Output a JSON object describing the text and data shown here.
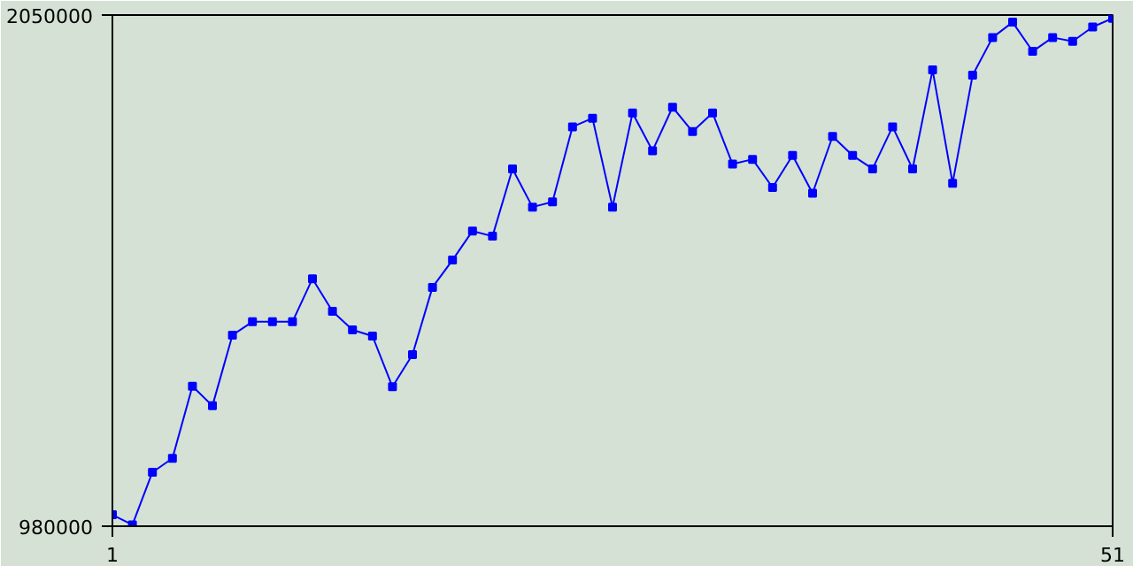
{
  "chart_data": {
    "type": "line",
    "x": [
      1,
      2,
      3,
      4,
      5,
      6,
      7,
      8,
      9,
      10,
      11,
      12,
      13,
      14,
      15,
      16,
      17,
      18,
      19,
      20,
      21,
      22,
      23,
      24,
      25,
      26,
      27,
      28,
      29,
      30,
      31,
      32,
      33,
      34,
      35,
      36,
      37,
      38,
      39,
      40,
      41,
      42,
      43,
      44,
      45,
      46,
      47,
      48,
      49,
      50,
      51
    ],
    "series": [
      {
        "color": "#0000ff",
        "values": [
          1004000,
          983000,
          1093000,
          1122000,
          1273000,
          1232000,
          1380000,
          1408000,
          1408000,
          1408000,
          1498000,
          1430000,
          1391000,
          1378000,
          1272000,
          1339000,
          1480000,
          1537000,
          1598000,
          1587000,
          1728000,
          1648000,
          1659000,
          1816000,
          1834000,
          1648000,
          1845000,
          1766000,
          1857000,
          1806000,
          1845000,
          1738000,
          1748000,
          1689000,
          1756000,
          1677000,
          1796000,
          1756000,
          1728000,
          1816000,
          1728000,
          1935000,
          1698000,
          1924000,
          2003000,
          2035000,
          1974000,
          2003000,
          1995000,
          2025000,
          2043000
        ]
      }
    ],
    "xlim": [
      1,
      51
    ],
    "ylim": [
      980000,
      2050000
    ],
    "xticks": [
      1,
      51
    ],
    "yticks": [
      980000,
      2050000
    ],
    "marker": "square",
    "line_style": "solid"
  }
}
